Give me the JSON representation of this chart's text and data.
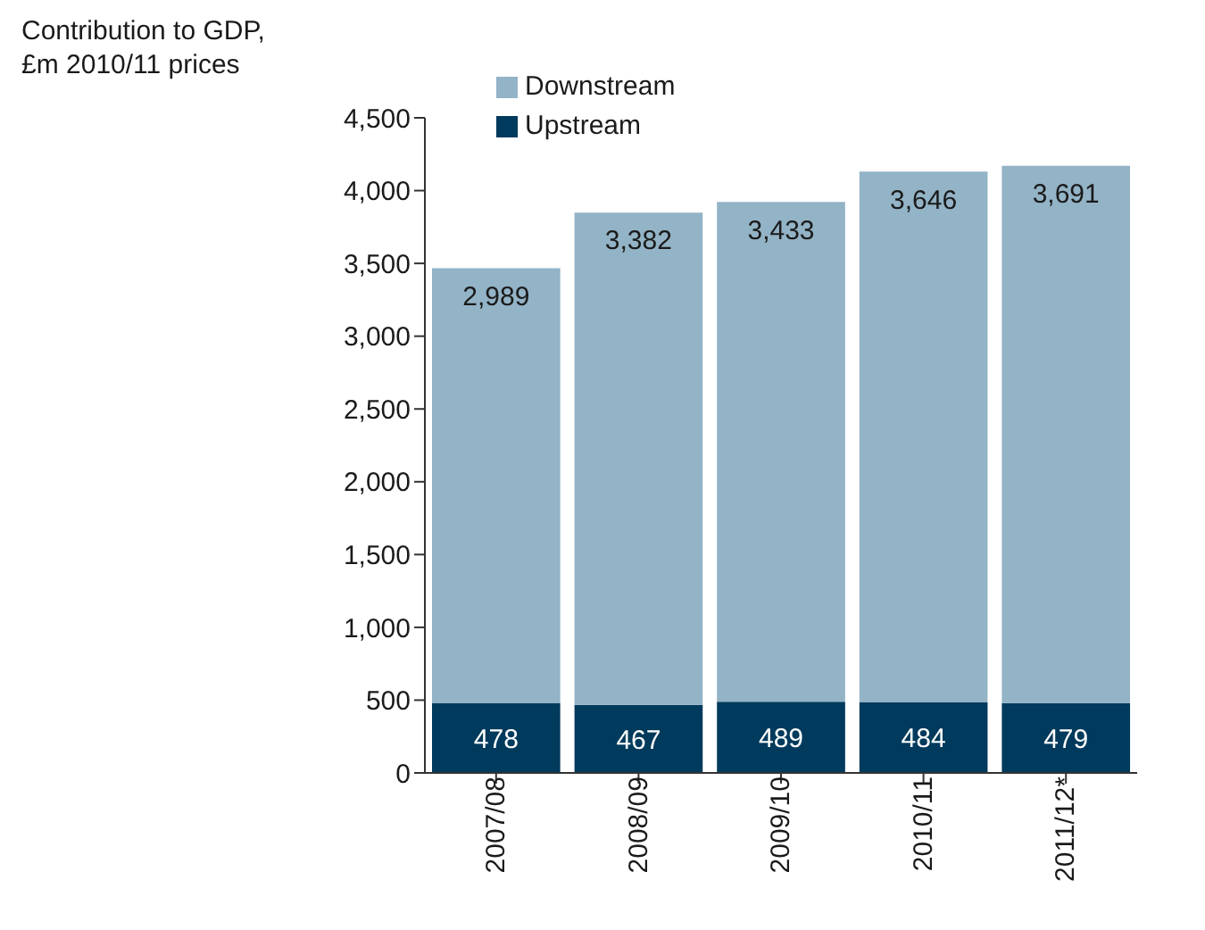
{
  "chart_data": {
    "type": "bar",
    "ylabel": "Contribution to GDP,\n£m 2010/11 prices",
    "categories": [
      "2007/08",
      "2008/09",
      "2009/10",
      "2010/11",
      "2011/12*"
    ],
    "stacked": true,
    "series": [
      {
        "name": "Upstream",
        "color": "#003a5c",
        "values": [
          478,
          467,
          489,
          484,
          479
        ],
        "value_labels": [
          "478",
          "467",
          "489",
          "484",
          "479"
        ]
      },
      {
        "name": "Downstream",
        "color": "#93b3c6",
        "values": [
          2989,
          3382,
          3433,
          3646,
          3691
        ],
        "value_labels": [
          "2,989",
          "3,382",
          "3,433",
          "3,646",
          "3,691"
        ]
      }
    ],
    "ylim": [
      0,
      4500
    ],
    "yticks": [
      {
        "value": 0,
        "label": "0"
      },
      {
        "value": 500,
        "label": "500"
      },
      {
        "value": 1000,
        "label": "1,000"
      },
      {
        "value": 1500,
        "label": "1,500"
      },
      {
        "value": 2000,
        "label": "2,000"
      },
      {
        "value": 2500,
        "label": "2,500"
      },
      {
        "value": 3000,
        "label": "3,000"
      },
      {
        "value": 3500,
        "label": "3,500"
      },
      {
        "value": 4000,
        "label": "4,000"
      },
      {
        "value": 4500,
        "label": "4,500"
      }
    ],
    "legend": "top",
    "grid": false
  }
}
